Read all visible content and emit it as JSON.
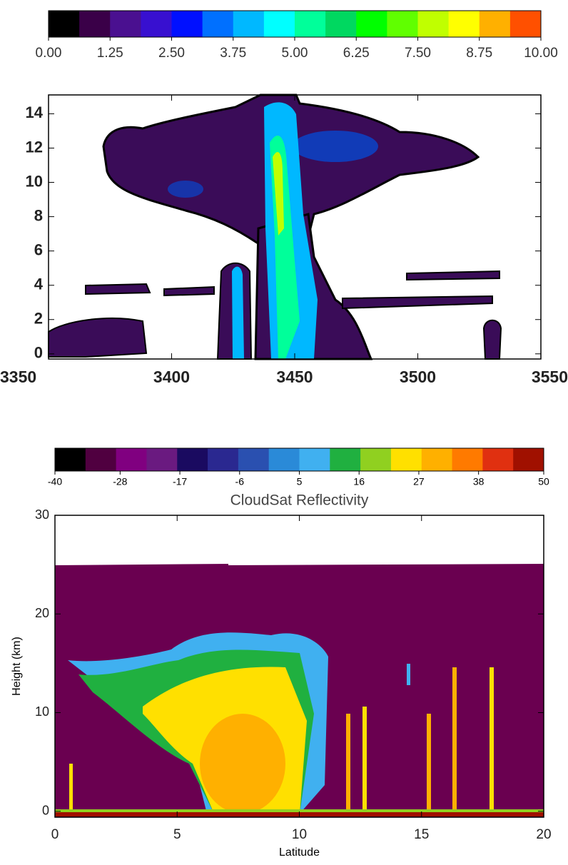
{
  "chart_data": [
    {
      "type": "heatmap",
      "colorbar": {
        "colors": [
          "#000000",
          "#3a0048",
          "#4a1090",
          "#3810d0",
          "#0010ff",
          "#0070ff",
          "#00b8ff",
          "#00ffff",
          "#00ff9a",
          "#00d860",
          "#00ff00",
          "#60ff00",
          "#c0ff00",
          "#ffff00",
          "#ffb000",
          "#ff5000"
        ],
        "lim": [
          0,
          10
        ],
        "ticks": [
          {
            "value": 0,
            "label": "0.00"
          },
          {
            "value": 1.25,
            "label": "1.25"
          },
          {
            "value": 2.5,
            "label": "2.50"
          },
          {
            "value": 3.75,
            "label": "3.75"
          },
          {
            "value": 5,
            "label": "5.00"
          },
          {
            "value": 6.25,
            "label": "6.25"
          },
          {
            "value": 7.5,
            "label": "7.50"
          },
          {
            "value": 8.75,
            "label": "8.75"
          },
          {
            "value": 10,
            "label": "10.00"
          }
        ]
      },
      "xlim": [
        3350,
        3550
      ],
      "xticks": [
        3350,
        3400,
        3450,
        3500,
        3550
      ],
      "ylim": [
        -0.3,
        15.1
      ],
      "yticks": [
        0,
        2,
        4,
        6,
        8,
        10,
        12,
        14
      ]
    },
    {
      "type": "heatmap",
      "title": "CloudSat Reflectivity",
      "xlabel": "Latitude",
      "ylabel": "Height (km)",
      "colorbar": {
        "colors": [
          "#000000",
          "#500040",
          "#800080",
          "#6a1a80",
          "#1a0a60",
          "#2a2890",
          "#2a50b0",
          "#2a8ad8",
          "#40b0f0",
          "#20b040",
          "#90d020",
          "#ffe000",
          "#ffb000",
          "#ff7a00",
          "#e03010",
          "#a01000"
        ],
        "lim": [
          -40,
          50
        ],
        "ticks": [
          -40,
          -28,
          -17,
          -6,
          5,
          16,
          27,
          38,
          50
        ]
      },
      "xlim": [
        0,
        20
      ],
      "xticks": [
        0,
        5,
        10,
        15,
        20
      ],
      "ylim": [
        -0.6,
        30
      ],
      "yticks": [
        0,
        10,
        20,
        30
      ]
    }
  ]
}
